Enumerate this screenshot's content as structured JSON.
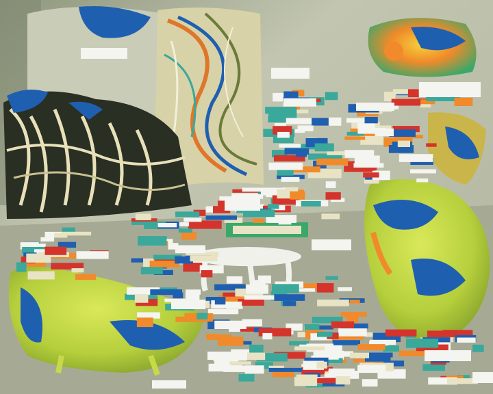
{
  "scene": {
    "colors": {
      "wall": "#bfc3ad",
      "wall_dark": "#7f8772",
      "floor": "#a9ad98",
      "yellow_green": "#c7d94a",
      "blue": "#1f5fb0",
      "orange": "#f08a2a",
      "red": "#d4342b",
      "cream": "#e8e3c4",
      "white": "#f4f4f0",
      "teal": "#3aa89a"
    },
    "objects": [
      {
        "name": "tangled-sculpture-left",
        "kind": "organic-mesh"
      },
      {
        "name": "tall-swirl-panel",
        "kind": "organic-mesh"
      },
      {
        "name": "blob-chair-bottom-left",
        "kind": "blob"
      },
      {
        "name": "blob-chair-right",
        "kind": "blob"
      },
      {
        "name": "blob-stool-top-right",
        "kind": "blob"
      },
      {
        "name": "white-table-center",
        "kind": "furniture"
      },
      {
        "name": "label-glyph-cluster",
        "kind": "glitch-labels"
      }
    ]
  }
}
